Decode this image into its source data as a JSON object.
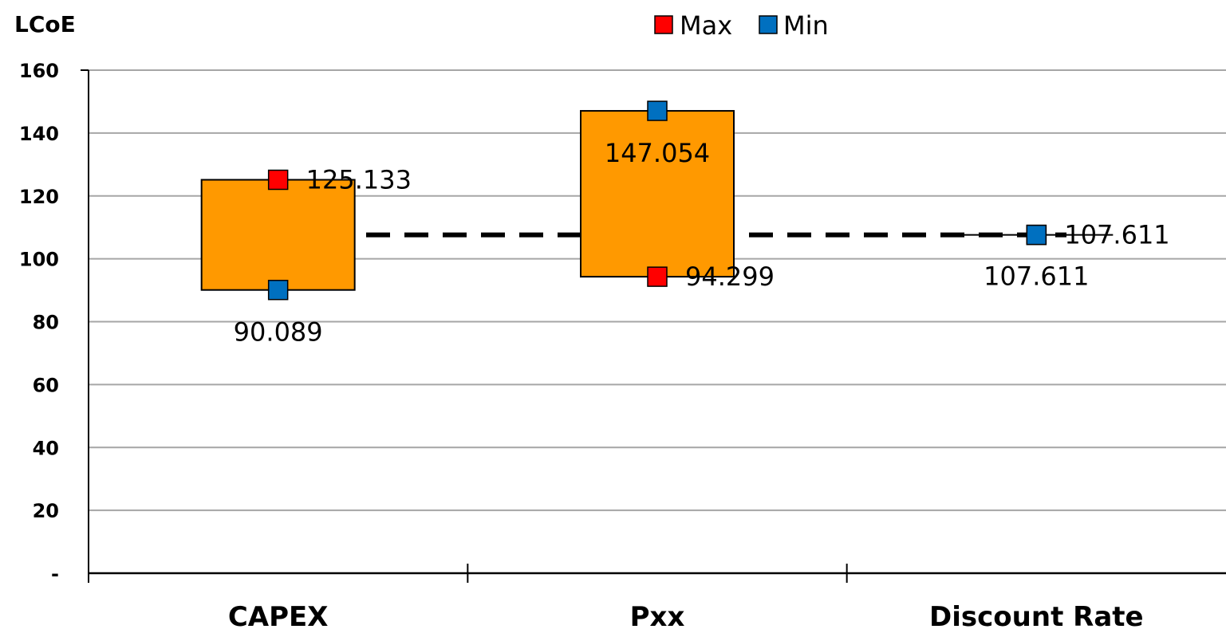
{
  "chart_data": {
    "type": "range-bar",
    "ylabel": "LCoE",
    "ylim": [
      0,
      160
    ],
    "ytick_step": 20,
    "ytick_labels": [
      "-",
      "20",
      "40",
      "60",
      "80",
      "100",
      "120",
      "140",
      "160"
    ],
    "categories": [
      "CAPEX",
      "Pxx",
      "Discount Rate"
    ],
    "series": [
      {
        "name": "Max",
        "values": [
          125.133,
          94.299,
          107.611
        ],
        "labels": [
          "125.133",
          "94.299",
          "107.611"
        ]
      },
      {
        "name": "Min",
        "values": [
          90.089,
          147.054,
          107.611
        ],
        "labels": [
          "90.089",
          "147.054",
          "107.611"
        ]
      }
    ],
    "baseline": 107.611,
    "grid": true,
    "legend_position": "top-center"
  },
  "colors": {
    "max": "#ff0000",
    "min": "#0070c0",
    "bar": "#ff9900",
    "grid": "#a6a6a6",
    "axis": "#000000"
  }
}
